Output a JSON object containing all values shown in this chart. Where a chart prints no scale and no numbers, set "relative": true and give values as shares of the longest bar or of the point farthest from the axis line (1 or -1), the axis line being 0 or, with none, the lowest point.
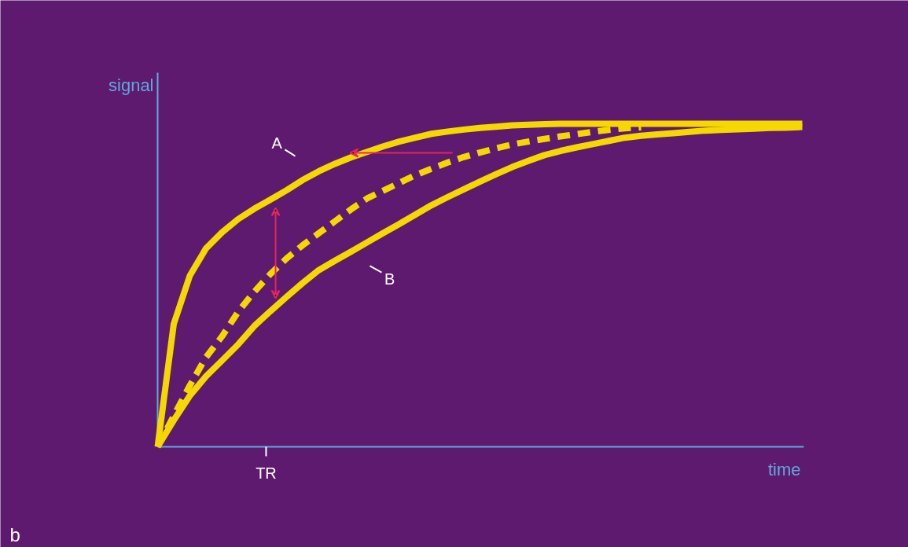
{
  "chart_data": {
    "type": "line",
    "relative": true,
    "xlabel": "time",
    "ylabel": "signal",
    "categories": [
      null,
      null,
      null,
      null,
      null,
      null,
      null,
      null,
      null,
      null,
      null,
      null,
      null,
      null,
      null,
      null,
      null,
      null,
      null,
      null,
      null,
      null,
      null,
      null,
      null,
      null,
      null,
      null,
      null,
      null,
      null,
      null,
      null,
      null,
      null,
      null,
      null,
      null,
      null,
      null,
      null
    ],
    "series": [
      {
        "color": "#f5d800",
        "values": [
          0,
          0.38,
          0.53,
          0.614,
          0.664,
          0.705,
          0.737,
          0.765,
          0.794,
          0.826,
          0.853,
          0.876,
          0.896,
          0.913,
          0.93,
          0.945,
          0.957,
          0.969,
          0.976,
          0.982,
          0.987,
          0.991,
          0.995,
          0.997,
          0.999,
          1.0,
          1.0,
          1.0,
          1.0,
          1.0,
          1.0,
          1.0,
          1.0,
          1.0,
          1.0,
          1.0,
          1.0,
          1.0,
          1.0,
          1.0,
          1.0
        ]
      },
      {
        "color": "#f5d800",
        "values": [
          0,
          0.082,
          0.158,
          0.218,
          0.267,
          0.317,
          0.374,
          0.42,
          0.464,
          0.507,
          0.547,
          0.576,
          0.604,
          0.633,
          0.662,
          0.69,
          0.719,
          0.748,
          0.773,
          0.797,
          0.821,
          0.844,
          0.866,
          0.885,
          0.903,
          0.916,
          0.927,
          0.937,
          0.947,
          0.957,
          0.963,
          0.967,
          0.971,
          0.975,
          0.979,
          0.981,
          0.983,
          0.985,
          0.987,
          0.988,
          0.99
        ]
      },
      {
        "color": "#f5d800",
        "line_style": "dashed",
        "values": [
          0,
          0.096,
          0.19,
          0.277,
          0.342,
          0.418,
          0.48,
          0.535,
          0.583,
          0.624,
          0.661,
          0.698,
          0.735,
          0.769,
          0.793,
          0.817,
          0.841,
          0.861,
          0.88,
          0.897,
          0.911,
          0.924,
          0.936,
          0.945,
          0.953,
          0.961,
          0.968,
          0.975,
          0.981,
          0.986,
          0.989,
          null,
          null,
          null,
          null,
          null,
          null,
          null,
          null,
          null,
          null
        ]
      }
    ],
    "annotations": [
      "A",
      "B",
      "TR",
      "b"
    ]
  }
}
